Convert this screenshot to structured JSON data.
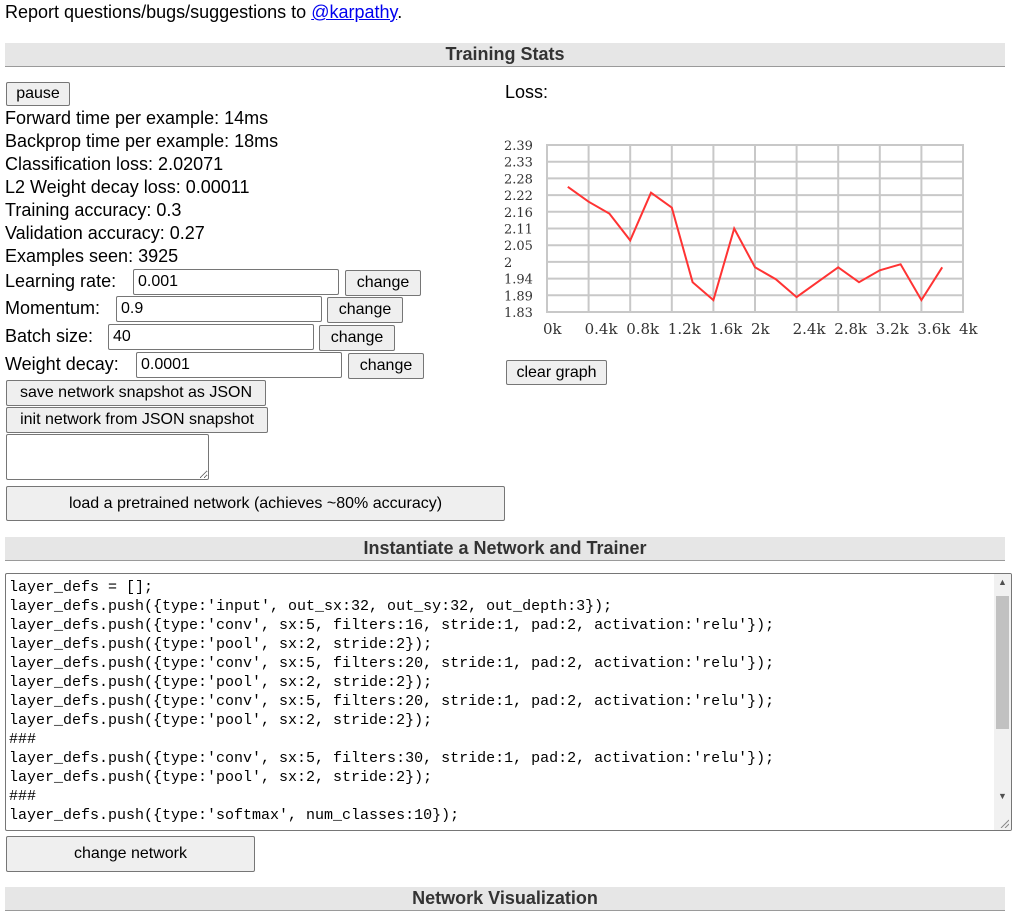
{
  "top_note": {
    "prefix": "Report questions/bugs/suggestions to ",
    "link": "@karpathy",
    "suffix": "."
  },
  "sections": {
    "training_stats": "Training Stats",
    "instantiate": "Instantiate a Network and Trainer",
    "visualization": "Network Visualization"
  },
  "stats": {
    "pause_label": "pause",
    "forward_time": "Forward time per example: 14ms",
    "backprop_time": "Backprop time per example: 18ms",
    "classification_loss": "Classification loss: 2.02071",
    "l2_loss": "L2 Weight decay loss: 0.00011",
    "training_accuracy": "Training accuracy: 0.3",
    "validation_accuracy": "Validation accuracy: 0.27",
    "examples_seen": "Examples seen: 3925"
  },
  "params": {
    "learning_rate": {
      "label": "Learning rate:",
      "value": "0.001",
      "button": "change"
    },
    "momentum": {
      "label": "Momentum:",
      "value": "0.9",
      "button": "change"
    },
    "batch_size": {
      "label": "Batch size:",
      "value": "40",
      "button": "change"
    },
    "weight_decay": {
      "label": "Weight decay:",
      "value": "0.0001",
      "button": "change"
    }
  },
  "snapshot": {
    "save_label": "save network snapshot as JSON",
    "init_label": "init network from JSON snapshot",
    "textarea_value": "",
    "pretrained_label": "load a pretrained network (achieves ~80% accuracy)"
  },
  "loss_panel": {
    "title": "Loss:",
    "clear_label": "clear graph"
  },
  "chart_data": {
    "type": "line",
    "title": "Loss:",
    "xlabel": "",
    "ylabel": "",
    "y_ticks": [
      "2.39",
      "2.33",
      "2.28",
      "2.22",
      "2.16",
      "2.11",
      "2.05",
      "2",
      "1.94",
      "1.89",
      "1.83"
    ],
    "x_ticks": [
      "0k",
      "0.4k",
      "0.8k",
      "1.2k",
      "1.6k",
      "2k",
      "2.4k",
      "2.8k",
      "3.2k",
      "3.6k",
      "4k"
    ],
    "xlim": [
      0,
      4000
    ],
    "ylim": [
      1.83,
      2.39
    ],
    "grid": true,
    "color": "#ff3333",
    "x": [
      200,
      400,
      600,
      800,
      1000,
      1200,
      1400,
      1600,
      1800,
      2000,
      2200,
      2400,
      2600,
      2800,
      3000,
      3200,
      3400,
      3600,
      3800
    ],
    "y": [
      2.25,
      2.2,
      2.16,
      2.07,
      2.23,
      2.18,
      1.93,
      1.87,
      2.11,
      1.98,
      1.94,
      1.88,
      1.93,
      1.98,
      1.93,
      1.97,
      1.99,
      1.87,
      1.98
    ]
  },
  "network_code": {
    "lines": [
      "layer_defs = [];",
      "layer_defs.push({type:'input', out_sx:32, out_sy:32, out_depth:3});",
      "layer_defs.push({type:'conv', sx:5, filters:16, stride:1, pad:2, activation:'relu'});",
      "layer_defs.push({type:'pool', sx:2, stride:2});",
      "layer_defs.push({type:'conv', sx:5, filters:20, stride:1, pad:2, activation:'relu'});",
      "layer_defs.push({type:'pool', sx:2, stride:2});",
      "layer_defs.push({type:'conv', sx:5, filters:20, stride:1, pad:2, activation:'relu'});",
      "layer_defs.push({type:'pool', sx:2, stride:2});",
      "###",
      "layer_defs.push({type:'conv', sx:5, filters:30, stride:1, pad:2, activation:'relu'});",
      "layer_defs.push({type:'pool', sx:2, stride:2});",
      "###",
      "layer_defs.push({type:'softmax', num_classes:10});"
    ],
    "change_label": "change network"
  }
}
